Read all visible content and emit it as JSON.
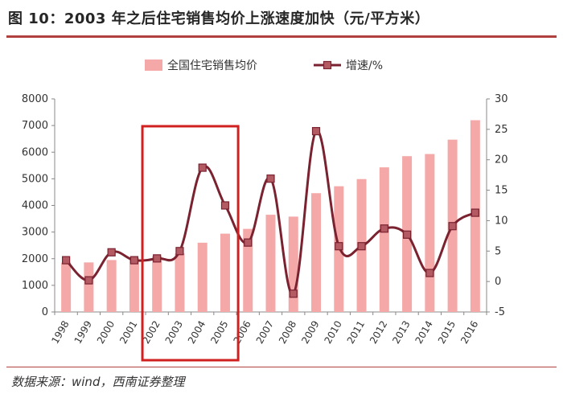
{
  "title": "图 10：2003 年之后住宅销售均价上涨速度加快（元/平方米）",
  "source": "数据来源：wind，西南证券整理",
  "colors": {
    "bar": "#f4a9a8",
    "line": "#7a2230",
    "marker": "#b35a63",
    "highlight_box": "#d0201f",
    "title_rule": "#b0413e"
  },
  "chart_data": {
    "type": "bar",
    "categories": [
      "1998",
      "1999",
      "2000",
      "2001",
      "2002",
      "2003",
      "2004",
      "2005",
      "2006",
      "2007",
      "2008",
      "2009",
      "2010",
      "2011",
      "2012",
      "2013",
      "2014",
      "2015",
      "2016"
    ],
    "series": [
      {
        "name": "全国住宅销售均价",
        "type": "bar",
        "axis": "left",
        "values": [
          1850,
          1860,
          1950,
          2020,
          2090,
          2200,
          2600,
          2940,
          3120,
          3650,
          3580,
          4460,
          4720,
          4990,
          5430,
          5850,
          5930,
          6470,
          7200
        ]
      },
      {
        "name": "增速/%",
        "type": "line",
        "axis": "right",
        "values": [
          3.5,
          0.2,
          4.8,
          3.5,
          3.8,
          5.0,
          18.7,
          12.5,
          6.4,
          16.9,
          -2.0,
          24.7,
          5.8,
          5.8,
          8.7,
          7.7,
          1.4,
          9.1,
          11.3
        ]
      }
    ],
    "y_left": {
      "min": 0,
      "max": 8000,
      "ticks": [
        0,
        1000,
        2000,
        3000,
        4000,
        5000,
        6000,
        7000,
        8000
      ]
    },
    "y_right": {
      "min": -5,
      "max": 30,
      "ticks": [
        -5,
        0,
        5,
        10,
        15,
        20,
        25,
        30
      ]
    },
    "highlight_range": [
      "2002",
      "2005"
    ],
    "legend_position": "top-center",
    "grid": false
  }
}
